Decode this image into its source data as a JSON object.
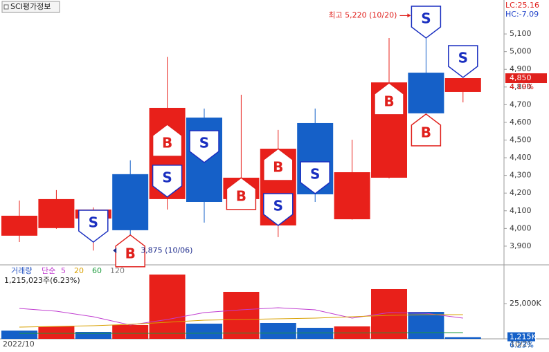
{
  "chart_data": [
    {
      "type": "candlestick",
      "title": "SCI평가정보",
      "indicators": [
        {
          "text": "LC:25.16",
          "color": "#e0201c"
        },
        {
          "text": "HC:-7.09",
          "color": "#1c3fc8"
        }
      ],
      "up_color": "#e8201a",
      "down_color": "#1560c8",
      "ylim": [
        3798,
        5292
      ],
      "yticks": [
        {
          "value": 3900,
          "label": "3,900"
        },
        {
          "value": 4000,
          "label": "4,000"
        },
        {
          "value": 4100,
          "label": "4,100"
        },
        {
          "value": 4200,
          "label": "4,200"
        },
        {
          "value": 4300,
          "label": "4,300"
        },
        {
          "value": 4400,
          "label": "4,400"
        },
        {
          "value": 4500,
          "label": "4,500"
        },
        {
          "value": 4600,
          "label": "4,600"
        },
        {
          "value": 4700,
          "label": "4,700"
        },
        {
          "value": 4800,
          "label": "4,800"
        },
        {
          "value": 4900,
          "label": "4,900"
        },
        {
          "value": 5000,
          "label": "5,000"
        },
        {
          "value": 5100,
          "label": "5,100"
        }
      ],
      "open": [
        3959,
        4002,
        4056,
        4307,
        4166,
        4627,
        4166,
        4017,
        4596,
        4052,
        4287,
        4881,
        4772
      ],
      "high": [
        4158,
        4217,
        4119,
        4385,
        4971,
        4678,
        4756,
        4557,
        4678,
        4502,
        5077,
        5220,
        4850
      ],
      "low": [
        3923,
        3998,
        3875,
        3875,
        4107,
        4033,
        4160,
        3951,
        4150,
        4050,
        4283,
        4651,
        4713
      ],
      "close": [
        4072,
        4166,
        4107,
        3990,
        4682,
        4150,
        4287,
        4451,
        4193,
        4318,
        4826,
        4651,
        4850
      ],
      "signals": [
        {
          "candle": 2,
          "label": "S",
          "price": 3923
        },
        {
          "candle": 3,
          "label": "B",
          "price": 3963
        },
        {
          "candle": 4,
          "label": "B",
          "price": 4588
        },
        {
          "candle": 4,
          "label": "S",
          "price": 4178
        },
        {
          "candle": 5,
          "label": "S",
          "price": 4373
        },
        {
          "candle": 6,
          "label": "B",
          "price": 4287
        },
        {
          "candle": 7,
          "label": "B",
          "price": 4451
        },
        {
          "candle": 7,
          "label": "S",
          "price": 4017
        },
        {
          "candle": 8,
          "label": "S",
          "price": 4197
        },
        {
          "candle": 10,
          "label": "B",
          "price": 4823
        },
        {
          "candle": 11,
          "label": "S",
          "price": 5077
        },
        {
          "candle": 11,
          "label": "B",
          "price": 4647
        },
        {
          "candle": 12,
          "label": "S",
          "price": 4854
        }
      ],
      "annotations": [
        {
          "text": "최고 5,220 (10/20)",
          "value": 5220,
          "candle": 11,
          "side": "left",
          "color": "#e0201c"
        },
        {
          "text": "3,875 (10/06)",
          "value": 3875,
          "candle": 3,
          "side": "right",
          "color": "#1c2a8c"
        }
      ],
      "last": {
        "value": 4850,
        "label": "4,850"
      },
      "change": {
        "value": 4.19,
        "label": "4.19%"
      }
    },
    {
      "type": "volume",
      "title": "거래량",
      "ma_label": "단순",
      "info": "1,215,023주(6.23%)",
      "ylim": [
        0,
        52450
      ],
      "yticks": [
        {
          "value": 25000,
          "label": "25,000K"
        }
      ],
      "values": [
        5882,
        8824,
        4902,
        9804,
        45588,
        10784,
        33333,
        11275,
        7843,
        8824,
        35294,
        19118,
        1215
      ],
      "series": [
        {
          "name": "5",
          "color": "#c03cd0",
          "values": [
            21569,
            19608,
            15686,
            9804,
            13725,
            18627,
            20588,
            22059,
            20588,
            14706,
            18627,
            18137,
            14706
          ]
        },
        {
          "name": "20",
          "color": "#d8a000",
          "values": [
            8333,
            8824,
            9314,
            10294,
            11765,
            13235,
            13725,
            14216,
            14706,
            15686,
            16667,
            17157,
            17157
          ]
        },
        {
          "name": "60",
          "color": "#1a9a3a",
          "values": [
            3922,
            3922,
            3922,
            3922,
            3922,
            4020,
            4118,
            4118,
            4216,
            4216,
            4314,
            4412,
            4412
          ]
        },
        {
          "name": "120",
          "color": "#808080",
          "values": [
            null,
            null,
            null,
            null,
            null,
            null,
            null,
            null,
            null,
            null,
            null,
            null,
            null
          ]
        }
      ],
      "last": {
        "value": 1215,
        "label": "1,215K"
      },
      "ratio": {
        "value": 6.23,
        "label": "6.23%"
      },
      "period_start": "2022/10",
      "period_end": "10/21"
    }
  ]
}
